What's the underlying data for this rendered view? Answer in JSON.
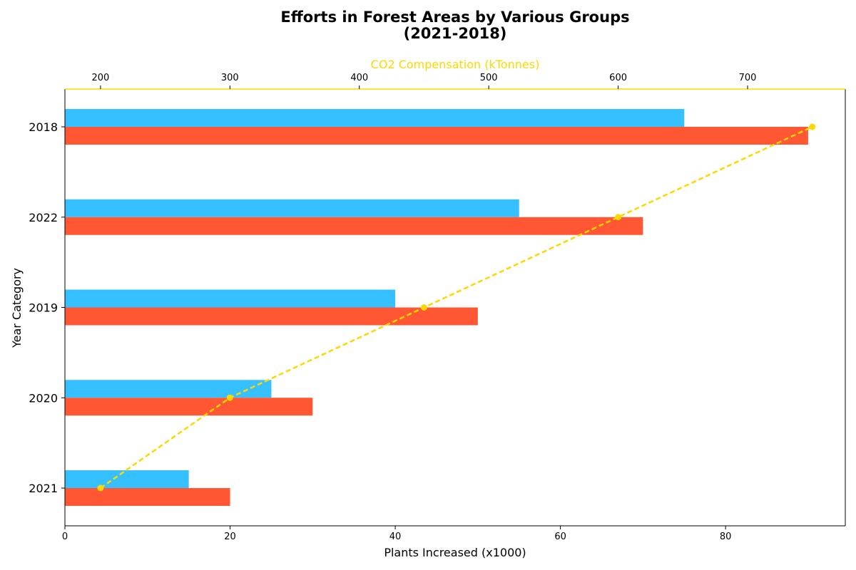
{
  "chart_data": {
    "type": "bar",
    "orientation": "horizontal",
    "title_line1": "Efforts in Forest Areas by Various Groups",
    "title_line2": "(2021-2018)",
    "xlabel": "Plants Increased (x1000)",
    "ylabel": "Year Category",
    "x2label": "CO2 Compensation (kTonnes)",
    "categories": [
      "2021",
      "2020",
      "2019",
      "2022",
      "2018"
    ],
    "xlim": [
      0,
      94.5
    ],
    "x2lim": [
      172.5,
      775.5
    ],
    "xticks": [
      0,
      20,
      40,
      60,
      80
    ],
    "x2ticks": [
      200,
      300,
      400,
      500,
      600,
      700
    ],
    "grid": false,
    "legend": "none",
    "series": [
      {
        "values": [
          15,
          25,
          40,
          55,
          75
        ],
        "color": "#36C0FF",
        "kind": "bar"
      },
      {
        "values": [
          20,
          30,
          50,
          70,
          90
        ],
        "color": "#FF5733",
        "kind": "bar"
      },
      {
        "values": [
          200,
          300,
          450,
          600,
          750
        ],
        "color": "#FFD700",
        "kind": "line",
        "axis": "top",
        "style": "dashed",
        "marker": "circle"
      }
    ]
  }
}
